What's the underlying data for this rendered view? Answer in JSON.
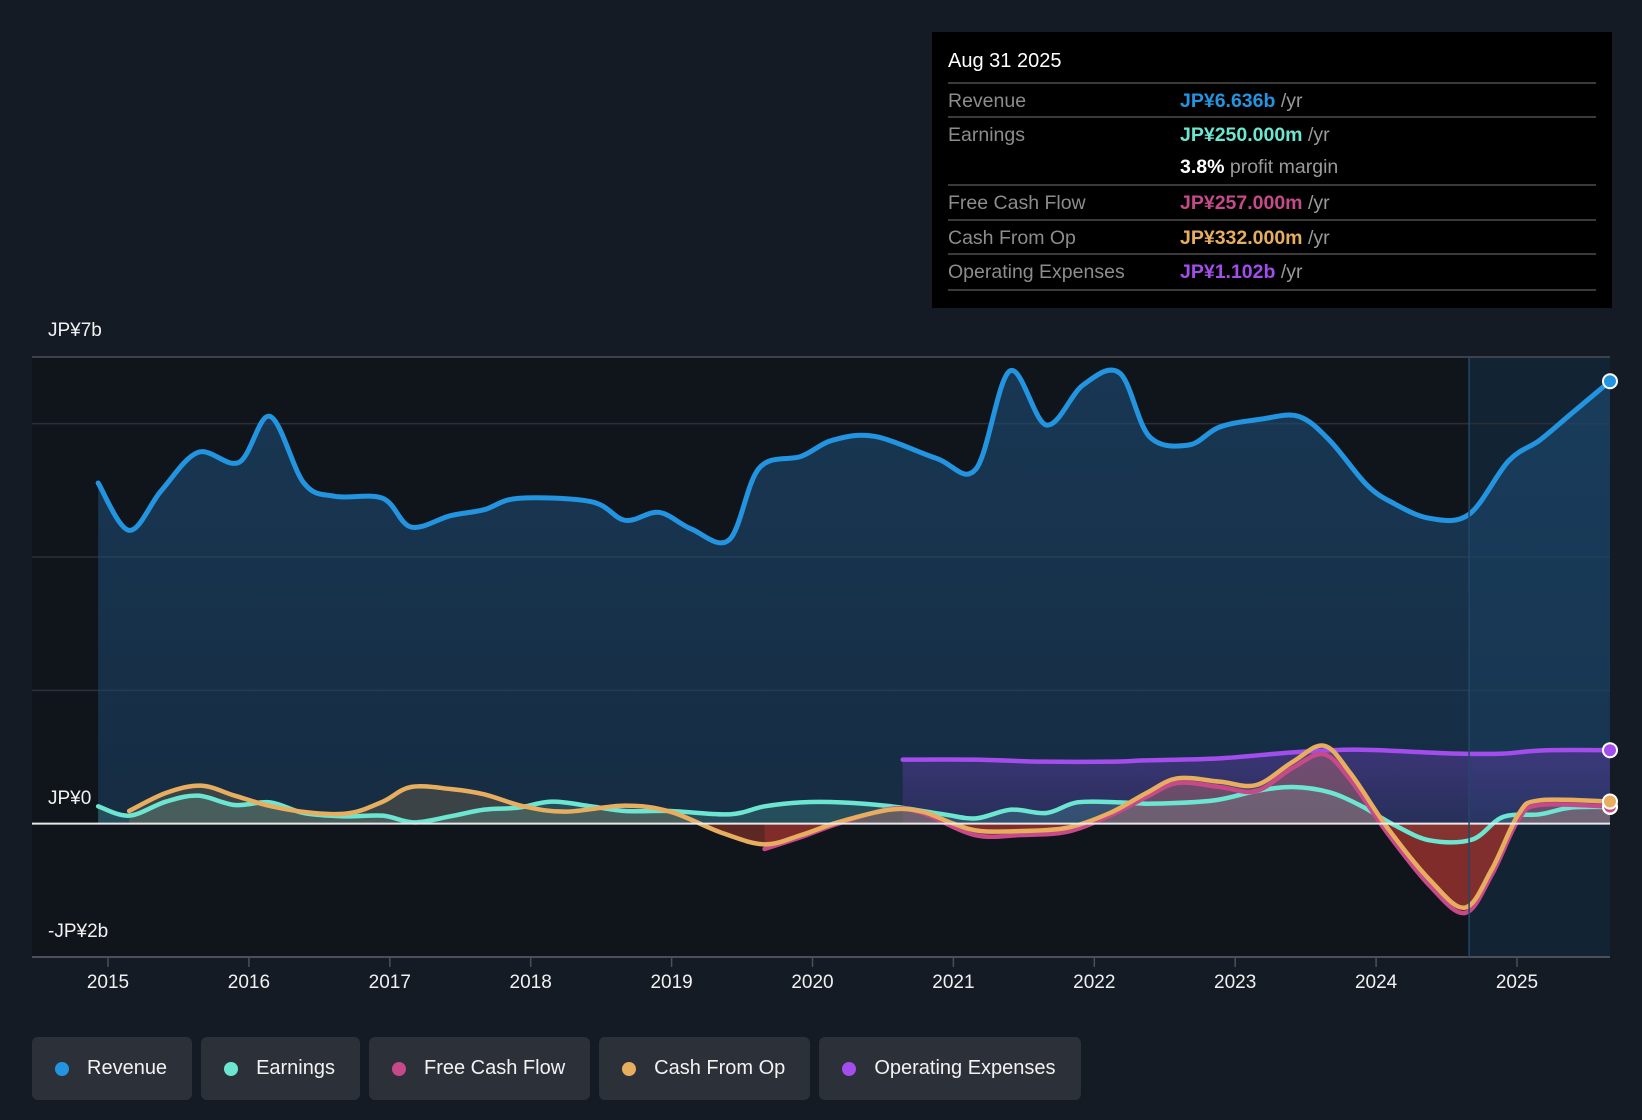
{
  "tooltip": {
    "date": "Aug 31 2025",
    "rows": [
      {
        "label": "Revenue",
        "value": "JP¥6.636b",
        "unit": " /yr",
        "color": "#2394df"
      },
      {
        "label": "Earnings",
        "value": "JP¥250.000m",
        "unit": " /yr",
        "color": "#6ce5d1"
      },
      {
        "label": "",
        "value": "3.8%",
        "unit": " profit margin",
        "color": "#ffffff"
      },
      {
        "label": "Free Cash Flow",
        "value": "JP¥257.000m",
        "unit": " /yr",
        "color": "#c6498a"
      },
      {
        "label": "Cash From Op",
        "value": "JP¥332.000m",
        "unit": " /yr",
        "color": "#e8ae5f"
      },
      {
        "label": "Operating Expenses",
        "value": "JP¥1.102b",
        "unit": " /yr",
        "color": "#a34ded"
      }
    ]
  },
  "legend": [
    {
      "label": "Revenue",
      "color": "#2394df"
    },
    {
      "label": "Earnings",
      "color": "#6ce5d1"
    },
    {
      "label": "Free Cash Flow",
      "color": "#c6498a"
    },
    {
      "label": "Cash From Op",
      "color": "#e8ae5f"
    },
    {
      "label": "Operating Expenses",
      "color": "#a34ded"
    }
  ],
  "chart_data": {
    "type": "area",
    "title": "",
    "xlabel": "",
    "ylabel": "",
    "unit": "JP¥ billions",
    "ylim": [
      -2,
      7
    ],
    "xlim": [
      2014.58,
      2025.67
    ],
    "y_tick_labels": [
      {
        "value": 7,
        "label": "JP¥7b"
      },
      {
        "value": 0,
        "label": "JP¥0"
      },
      {
        "value": -2,
        "label": "-JP¥2b"
      }
    ],
    "gridlines": [
      7,
      6,
      4,
      2,
      0
    ],
    "x_ticks": [
      2015,
      2016,
      2017,
      2018,
      2019,
      2020,
      2021,
      2022,
      2023,
      2024,
      2025
    ],
    "x_tick_labels": [
      "2015",
      "2016",
      "2017",
      "2018",
      "2019",
      "2020",
      "2021",
      "2022",
      "2023",
      "2024",
      "2025"
    ],
    "highlight_start": 2024.66,
    "legend_position": "bottom-left",
    "series": [
      {
        "name": "Revenue",
        "color": "#2394df",
        "x": [
          2014.93,
          2015.15,
          2015.38,
          2015.64,
          2015.93,
          2016.15,
          2016.39,
          2016.61,
          2016.95,
          2017.15,
          2017.43,
          2017.67,
          2017.91,
          2018.43,
          2018.67,
          2018.91,
          2019.14,
          2019.41,
          2019.62,
          2019.92,
          2020.14,
          2020.44,
          2020.88,
          2021.16,
          2021.4,
          2021.66,
          2021.92,
          2022.18,
          2022.39,
          2022.67,
          2022.89,
          2023.19,
          2023.45,
          2023.67,
          2023.93,
          2024.12,
          2024.38,
          2024.66,
          2024.94,
          2025.16,
          2025.38,
          2025.66
        ],
        "y": [
          5.11,
          4.4,
          5.0,
          5.57,
          5.42,
          6.11,
          5.11,
          4.91,
          4.88,
          4.45,
          4.62,
          4.71,
          4.88,
          4.83,
          4.55,
          4.67,
          4.42,
          4.26,
          5.33,
          5.51,
          5.75,
          5.81,
          5.48,
          5.32,
          6.79,
          5.98,
          6.58,
          6.76,
          5.81,
          5.68,
          5.95,
          6.07,
          6.11,
          5.75,
          5.09,
          4.81,
          4.58,
          4.64,
          5.44,
          5.75,
          6.14,
          6.636
        ]
      },
      {
        "name": "Earnings",
        "color": "#6ce5d1",
        "x": [
          2014.93,
          2015.15,
          2015.41,
          2015.64,
          2015.9,
          2016.15,
          2016.39,
          2016.68,
          2016.95,
          2017.17,
          2017.43,
          2017.67,
          2017.91,
          2018.15,
          2018.43,
          2018.67,
          2018.99,
          2019.41,
          2019.66,
          2019.92,
          2020.2,
          2020.56,
          2020.93,
          2021.16,
          2021.41,
          2021.66,
          2021.88,
          2022.18,
          2022.41,
          2022.85,
          2023.15,
          2023.41,
          2023.67,
          2023.9,
          2024.12,
          2024.38,
          2024.68,
          2024.9,
          2025.16,
          2025.38,
          2025.66
        ],
        "y": [
          0.26,
          0.12,
          0.33,
          0.42,
          0.28,
          0.32,
          0.16,
          0.11,
          0.12,
          0.02,
          0.11,
          0.21,
          0.24,
          0.33,
          0.26,
          0.19,
          0.19,
          0.14,
          0.26,
          0.32,
          0.32,
          0.26,
          0.14,
          0.08,
          0.21,
          0.16,
          0.32,
          0.32,
          0.3,
          0.35,
          0.49,
          0.55,
          0.47,
          0.26,
          -0.01,
          -0.25,
          -0.24,
          0.1,
          0.14,
          0.24,
          0.25
        ]
      },
      {
        "name": "Free Cash Flow",
        "color": "#c6498a",
        "x": [
          2019.66,
          2019.92,
          2020.18,
          2020.55,
          2020.78,
          2021.15,
          2021.48,
          2021.81,
          2022.11,
          2022.37,
          2022.59,
          2022.89,
          2023.15,
          2023.41,
          2023.63,
          2023.82,
          2024.08,
          2024.38,
          2024.63,
          2024.82,
          2025.01,
          2025.16,
          2025.66
        ],
        "y": [
          -0.38,
          -0.2,
          0.0,
          0.22,
          0.16,
          -0.17,
          -0.17,
          -0.12,
          0.12,
          0.4,
          0.61,
          0.55,
          0.49,
          0.84,
          1.04,
          0.65,
          -0.14,
          -0.93,
          -1.34,
          -0.77,
          0.06,
          0.28,
          0.257
        ]
      },
      {
        "name": "Cash From Op",
        "color": "#e8ae5f",
        "x": [
          2015.15,
          2015.41,
          2015.66,
          2015.9,
          2016.16,
          2016.46,
          2016.72,
          2016.95,
          2017.15,
          2017.43,
          2017.67,
          2017.95,
          2018.25,
          2018.67,
          2018.99,
          2019.36,
          2019.66,
          2019.92,
          2020.18,
          2020.55,
          2020.78,
          2021.0,
          2021.19,
          2021.48,
          2021.81,
          2022.11,
          2022.37,
          2022.59,
          2022.89,
          2023.15,
          2023.41,
          2023.63,
          2023.82,
          2024.08,
          2024.38,
          2024.63,
          2024.82,
          2025.01,
          2025.16,
          2025.66
        ],
        "y": [
          0.19,
          0.46,
          0.57,
          0.42,
          0.26,
          0.16,
          0.16,
          0.33,
          0.55,
          0.52,
          0.44,
          0.26,
          0.18,
          0.27,
          0.18,
          -0.14,
          -0.31,
          -0.17,
          0.02,
          0.21,
          0.18,
          0.0,
          -0.11,
          -0.11,
          -0.06,
          0.16,
          0.46,
          0.68,
          0.63,
          0.58,
          0.93,
          1.17,
          0.75,
          -0.06,
          -0.84,
          -1.26,
          -0.69,
          0.14,
          0.35,
          0.332
        ]
      },
      {
        "name": "Operating Expenses",
        "color": "#a34ded",
        "x": [
          2020.64,
          2021.15,
          2021.63,
          2022.15,
          2022.37,
          2022.89,
          2023.41,
          2023.85,
          2024.34,
          2024.6,
          2024.9,
          2025.19,
          2025.66
        ],
        "y": [
          0.96,
          0.96,
          0.93,
          0.93,
          0.95,
          0.98,
          1.07,
          1.11,
          1.07,
          1.05,
          1.05,
          1.1,
          1.102
        ]
      }
    ]
  }
}
